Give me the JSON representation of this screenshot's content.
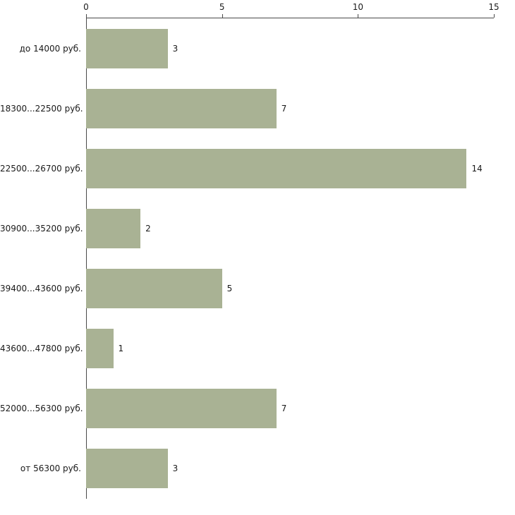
{
  "chart_data": {
    "type": "bar",
    "orientation": "horizontal",
    "title": "",
    "xlabel": "",
    "ylabel": "",
    "categories": [
      "до 14000 руб.",
      "18300...22500 руб.",
      "22500...26700 руб.",
      "30900...35200 руб.",
      "39400...43600 руб.",
      "43600...47800 руб.",
      "52000...56300 руб.",
      "от 56300 руб."
    ],
    "values": [
      3,
      7,
      14,
      2,
      5,
      1,
      7,
      3
    ],
    "xlim": [
      0,
      15
    ],
    "xticks": [
      0,
      5,
      10,
      15
    ],
    "grid": false,
    "legend": false,
    "bar_color": "#a9b294",
    "axis_color": "#4a4a4a",
    "text_color": "#1a1a1a",
    "background_color": "#ffffff"
  }
}
